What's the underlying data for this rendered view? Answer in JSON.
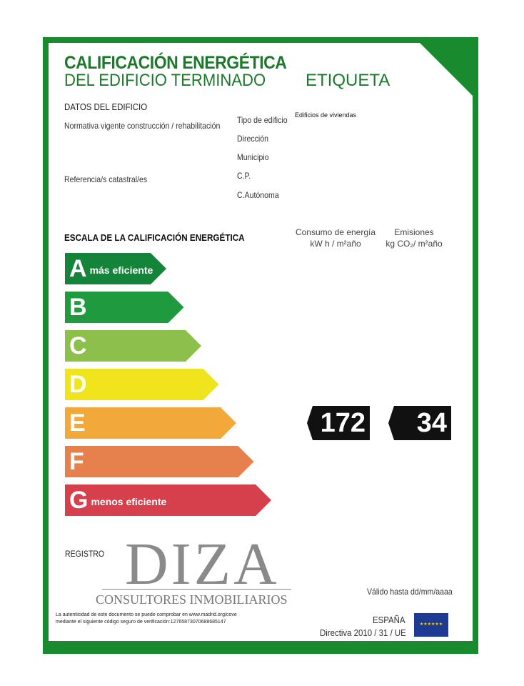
{
  "header": {
    "title_line1": "CALIFICACIÓN ENERGÉTICA",
    "title_line2": "DEL EDIFICIO TERMINADO",
    "label": "ETIQUETA"
  },
  "building": {
    "section_title": "DATOS DEL EDIFICIO",
    "normativa_label": "Normativa vigente construcción / rehabilitación",
    "referencia_label": "Referencia/s catastral/es",
    "tipo_label": "Tipo de edificio",
    "tipo_value": "Edificios de viviendas",
    "direccion_label": "Dirección",
    "municipio_label": "Municipio",
    "cp_label": "C.P.",
    "autonoma_label": "C.Autónoma"
  },
  "scale": {
    "title": "ESCALA DE LA CALIFICACIÓN ENERGÉTICA",
    "classes": [
      {
        "letter": "A",
        "note": "más eficiente",
        "color": "#14843a"
      },
      {
        "letter": "B",
        "note": "",
        "color": "#1f9a3e"
      },
      {
        "letter": "C",
        "note": "",
        "color": "#8cc04a"
      },
      {
        "letter": "D",
        "note": "",
        "color": "#f0e41c"
      },
      {
        "letter": "E",
        "note": "",
        "color": "#f3a93a"
      },
      {
        "letter": "F",
        "note": "",
        "color": "#e6804c"
      },
      {
        "letter": "G",
        "note": "menos eficiente",
        "color": "#d6404c"
      }
    ]
  },
  "consumption": {
    "label": "Consumo de energía",
    "unit": "kW h / m²año",
    "value": "172",
    "class": "E"
  },
  "emissions": {
    "label": "Emisiones",
    "unit": "kg CO₂/ m²año",
    "value": "34",
    "class": "E"
  },
  "footer": {
    "registro": "REGISTRO",
    "logo_main": "DIZA",
    "logo_sub": "CONSULTORES INMOBILIARIOS",
    "valid": "Válido hasta dd/mm/aaaa",
    "auth_line1": "La autenticidad de este documento se puede comprobar en www.madrid.org/cove",
    "auth_line2": "mediante el siguiente código seguro de verificación:12765873070688685147",
    "country": "ESPAÑA",
    "directive": "Directiva 2010 / 31 / UE"
  }
}
